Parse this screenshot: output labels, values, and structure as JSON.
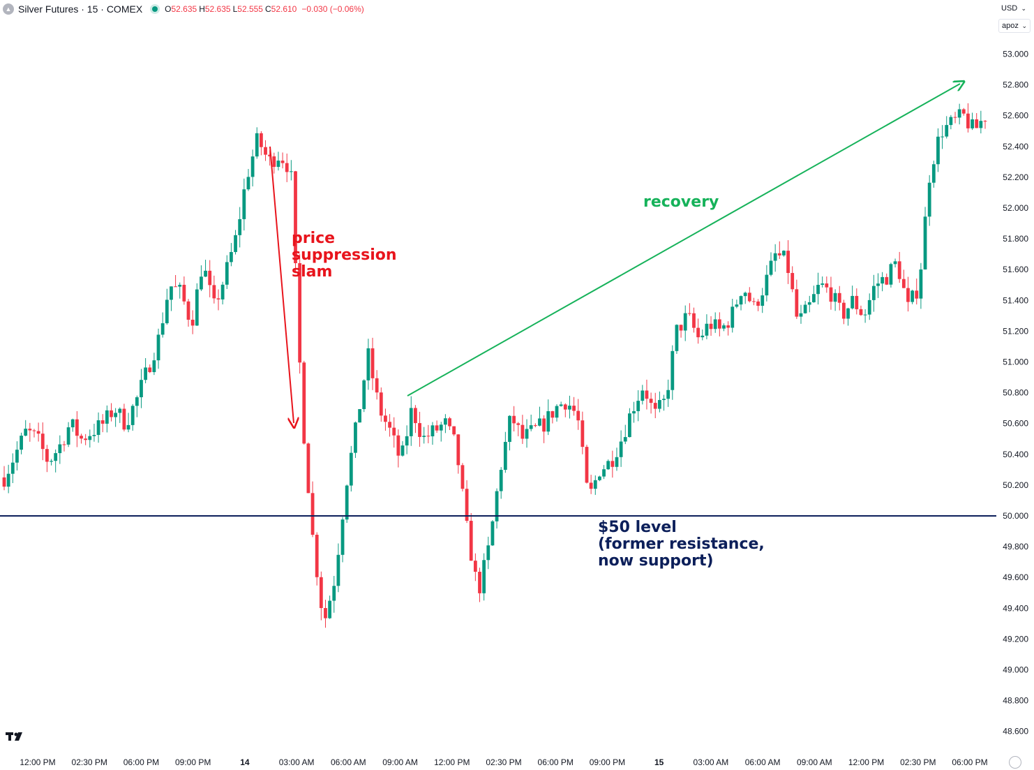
{
  "header": {
    "symbol_title": "Silver Futures · 15 · COMEX",
    "open_label": "O",
    "open": "52.635",
    "high_label": "H",
    "high": "52.635",
    "low_label": "L",
    "low": "52.555",
    "close_label": "C",
    "close": "52.610",
    "change": "−0.030 (−0.06%)"
  },
  "currency": "USD",
  "unit": "apoz",
  "icons": {
    "symbol": "silver-symbol-icon",
    "status": "market-status-dot-icon",
    "logo": "tradingview-logo-icon",
    "settings": "chart-settings-icon"
  },
  "colors": {
    "up": "#089981",
    "down": "#f23645",
    "support_line": "#0c1f5a",
    "recovery": "#16b25a",
    "slam": "#e8141c"
  },
  "chart_data": {
    "type": "candlestick",
    "ylim": [
      48.6,
      53.1
    ],
    "y_ticks": [
      "53.000",
      "52.800",
      "52.600",
      "52.400",
      "52.200",
      "52.000",
      "51.800",
      "51.600",
      "51.400",
      "51.200",
      "51.000",
      "50.800",
      "50.600",
      "50.400",
      "50.200",
      "50.000",
      "49.800",
      "49.600",
      "49.400",
      "49.200",
      "49.000",
      "48.800",
      "48.600"
    ],
    "x_tick_labels": [
      "12:00 PM",
      "02:30 PM",
      "06:00 PM",
      "09:00 PM",
      "14",
      "03:00 AM",
      "06:00 AM",
      "09:00 AM",
      "12:00 PM",
      "02:30 PM",
      "06:00 PM",
      "09:00 PM",
      "15",
      "03:00 AM",
      "06:00 AM",
      "09:00 AM",
      "12:00 PM",
      "02:30 PM",
      "06:00 PM"
    ],
    "grid": false,
    "price_path": [
      50.25,
      50.4,
      50.55,
      50.5,
      50.35,
      50.45,
      50.6,
      50.5,
      50.55,
      50.6,
      50.7,
      50.6,
      50.75,
      50.95,
      51.15,
      51.5,
      51.45,
      51.25,
      51.65,
      51.35,
      51.55,
      51.8,
      52.2,
      52.45,
      52.3,
      52.35,
      52.25,
      50.7,
      49.85,
      49.3,
      49.6,
      50.2,
      50.6,
      51.05,
      50.7,
      50.55,
      50.35,
      50.7,
      50.5,
      50.55,
      50.6,
      50.45,
      49.9,
      49.5,
      49.8,
      50.3,
      50.65,
      50.5,
      50.55,
      50.6,
      50.7,
      50.75,
      50.65,
      50.1,
      50.3,
      50.35,
      50.5,
      50.7,
      50.85,
      50.65,
      50.75,
      51.2,
      51.3,
      51.15,
      51.25,
      51.2,
      51.3,
      51.5,
      51.35,
      51.5,
      51.7,
      51.65,
      51.25,
      51.35,
      51.5,
      51.45,
      51.3,
      51.4,
      51.3,
      51.5,
      51.55,
      51.65,
      51.35,
      51.5,
      52.25,
      52.5,
      52.55,
      52.6,
      52.5,
      52.6
    ],
    "annotations": [
      {
        "type": "horizontal_line",
        "y": 50.0,
        "label": "$50 level\n(former resistance,\nnow support)",
        "color": "#0c1f5a"
      },
      {
        "type": "arrow",
        "label": "price\nsuppression\nslam",
        "from": {
          "x": "02:00 AM",
          "y": 52.4
        },
        "to": {
          "x": "03:00 AM",
          "y": 50.6
        },
        "color": "#e8141c"
      },
      {
        "type": "arrow",
        "label": "recovery",
        "from": {
          "x": "09:00 AM",
          "y": 50.8
        },
        "to": {
          "x": "06:00 PM",
          "y": 52.8
        },
        "color": "#16b25a"
      }
    ],
    "labels": {
      "support": [
        "$50 level",
        "(former resistance,",
        "now support)"
      ],
      "slam": [
        "price",
        "suppression",
        "slam"
      ],
      "recovery": "recovery"
    }
  }
}
